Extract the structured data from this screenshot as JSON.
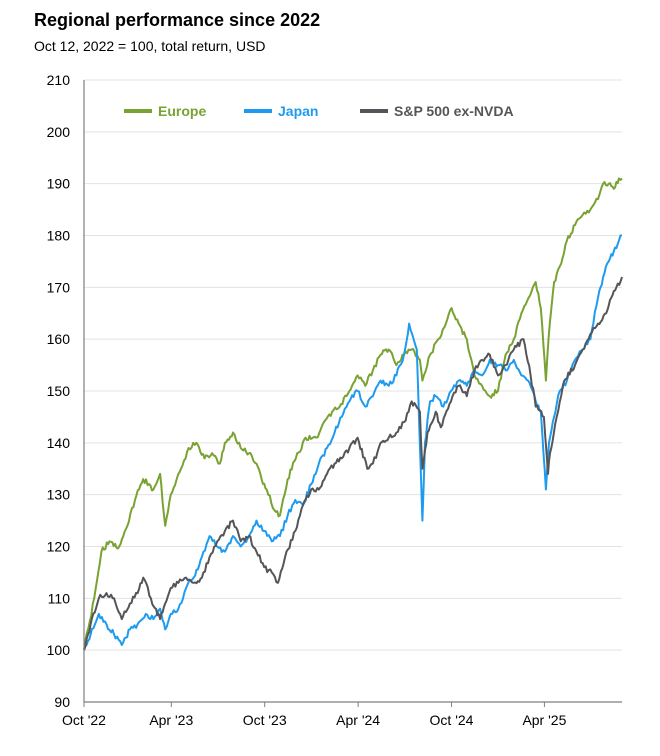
{
  "chart_data": {
    "type": "line",
    "title": "Regional performance since 2022",
    "subtitle": "Oct 12, 2022 = 100, total return, USD",
    "xlabel": "",
    "ylabel": "",
    "xlim": [
      "2022-10-12",
      "2025-08-31"
    ],
    "ylim": [
      90,
      210
    ],
    "y_ticks": [
      90,
      100,
      110,
      120,
      130,
      140,
      150,
      160,
      170,
      180,
      190,
      200,
      210
    ],
    "x_ticks": [
      {
        "date": "2022-10-12",
        "label": "Oct '22"
      },
      {
        "date": "2023-04-01",
        "label": "Apr '23"
      },
      {
        "date": "2023-10-01",
        "label": "Oct '23"
      },
      {
        "date": "2024-04-01",
        "label": "Apr '24"
      },
      {
        "date": "2024-10-01",
        "label": "Oct '24"
      },
      {
        "date": "2025-04-01",
        "label": "Apr '25"
      }
    ],
    "grid": {
      "horizontal": true,
      "vertical": false
    },
    "legend_position": "top-left",
    "series": [
      {
        "name": "Europe",
        "color": "#7aa232",
        "points": [
          [
            "2022-10-12",
            100
          ],
          [
            "2022-11-01",
            110
          ],
          [
            "2022-11-15",
            119
          ],
          [
            "2022-12-01",
            121
          ],
          [
            "2022-12-20",
            120
          ],
          [
            "2023-01-05",
            124
          ],
          [
            "2023-01-20",
            129
          ],
          [
            "2023-02-05",
            133
          ],
          [
            "2023-02-25",
            131
          ],
          [
            "2023-03-10",
            134
          ],
          [
            "2023-03-20",
            124
          ],
          [
            "2023-03-31",
            130
          ],
          [
            "2023-04-20",
            135
          ],
          [
            "2023-05-05",
            139
          ],
          [
            "2023-05-20",
            140
          ],
          [
            "2023-06-05",
            137
          ],
          [
            "2023-06-20",
            138
          ],
          [
            "2023-07-05",
            136
          ],
          [
            "2023-07-15",
            140
          ],
          [
            "2023-07-31",
            142
          ],
          [
            "2023-08-15",
            139
          ],
          [
            "2023-08-31",
            138
          ],
          [
            "2023-09-15",
            136
          ],
          [
            "2023-09-25",
            133
          ],
          [
            "2023-10-05",
            131
          ],
          [
            "2023-10-20",
            127
          ],
          [
            "2023-10-31",
            126
          ],
          [
            "2023-11-15",
            133
          ],
          [
            "2023-12-01",
            137
          ],
          [
            "2023-12-20",
            141
          ],
          [
            "2024-01-10",
            141
          ],
          [
            "2024-01-25",
            144
          ],
          [
            "2024-02-10",
            146
          ],
          [
            "2024-02-25",
            147
          ],
          [
            "2024-03-15",
            150
          ],
          [
            "2024-03-31",
            153
          ],
          [
            "2024-04-15",
            151
          ],
          [
            "2024-04-30",
            154
          ],
          [
            "2024-05-15",
            157
          ],
          [
            "2024-05-31",
            158
          ],
          [
            "2024-06-15",
            155
          ],
          [
            "2024-06-30",
            157
          ],
          [
            "2024-07-15",
            158
          ],
          [
            "2024-07-31",
            156
          ],
          [
            "2024-08-05",
            152
          ],
          [
            "2024-08-20",
            157
          ],
          [
            "2024-09-05",
            160
          ],
          [
            "2024-09-20",
            163
          ],
          [
            "2024-10-01",
            166
          ],
          [
            "2024-10-15",
            163
          ],
          [
            "2024-10-31",
            160
          ],
          [
            "2024-11-15",
            153
          ],
          [
            "2024-11-30",
            151
          ],
          [
            "2024-12-15",
            149
          ],
          [
            "2024-12-31",
            150
          ],
          [
            "2025-01-15",
            157
          ],
          [
            "2025-01-31",
            160
          ],
          [
            "2025-02-15",
            165
          ],
          [
            "2025-03-01",
            168
          ],
          [
            "2025-03-15",
            171
          ],
          [
            "2025-03-25",
            166
          ],
          [
            "2025-04-04",
            152
          ],
          [
            "2025-04-09",
            160
          ],
          [
            "2025-04-20",
            171
          ],
          [
            "2025-05-01",
            174
          ],
          [
            "2025-05-15",
            179
          ],
          [
            "2025-05-31",
            182
          ],
          [
            "2025-06-15",
            184
          ],
          [
            "2025-06-30",
            185
          ],
          [
            "2025-07-15",
            187
          ],
          [
            "2025-07-25",
            190
          ],
          [
            "2025-08-05",
            190
          ],
          [
            "2025-08-15",
            189
          ],
          [
            "2025-08-25",
            191
          ],
          [
            "2025-08-31",
            191
          ]
        ]
      },
      {
        "name": "Japan",
        "color": "#1e9bef",
        "points": [
          [
            "2022-10-12",
            100
          ],
          [
            "2022-10-25",
            103
          ],
          [
            "2022-11-10",
            107
          ],
          [
            "2022-11-25",
            105
          ],
          [
            "2022-12-10",
            103
          ],
          [
            "2022-12-25",
            101
          ],
          [
            "2023-01-10",
            104
          ],
          [
            "2023-01-25",
            105
          ],
          [
            "2023-02-10",
            107
          ],
          [
            "2023-02-25",
            106
          ],
          [
            "2023-03-10",
            108
          ],
          [
            "2023-03-20",
            104
          ],
          [
            "2023-03-31",
            107
          ],
          [
            "2023-04-15",
            108
          ],
          [
            "2023-04-30",
            112
          ],
          [
            "2023-05-15",
            114
          ],
          [
            "2023-05-31",
            118
          ],
          [
            "2023-06-15",
            122
          ],
          [
            "2023-06-30",
            120
          ],
          [
            "2023-07-15",
            119
          ],
          [
            "2023-07-31",
            122
          ],
          [
            "2023-08-15",
            120
          ],
          [
            "2023-08-31",
            122
          ],
          [
            "2023-09-15",
            125
          ],
          [
            "2023-09-30",
            123
          ],
          [
            "2023-10-15",
            121
          ],
          [
            "2023-10-31",
            122
          ],
          [
            "2023-11-15",
            126
          ],
          [
            "2023-11-30",
            129
          ],
          [
            "2023-12-15",
            128
          ],
          [
            "2023-12-31",
            132
          ],
          [
            "2024-01-15",
            136
          ],
          [
            "2024-01-31",
            139
          ],
          [
            "2024-02-15",
            142
          ],
          [
            "2024-02-29",
            145
          ],
          [
            "2024-03-15",
            148
          ],
          [
            "2024-03-31",
            150
          ],
          [
            "2024-04-15",
            147
          ],
          [
            "2024-04-30",
            149
          ],
          [
            "2024-05-15",
            152
          ],
          [
            "2024-05-31",
            151
          ],
          [
            "2024-06-15",
            153
          ],
          [
            "2024-06-30",
            157
          ],
          [
            "2024-07-10",
            163
          ],
          [
            "2024-07-25",
            158
          ],
          [
            "2024-08-05",
            125
          ],
          [
            "2024-08-10",
            140
          ],
          [
            "2024-08-20",
            148
          ],
          [
            "2024-08-31",
            149
          ],
          [
            "2024-09-15",
            147
          ],
          [
            "2024-09-30",
            150
          ],
          [
            "2024-10-15",
            152
          ],
          [
            "2024-10-31",
            151
          ],
          [
            "2024-11-15",
            154
          ],
          [
            "2024-11-30",
            153
          ],
          [
            "2024-12-15",
            156
          ],
          [
            "2024-12-31",
            155
          ],
          [
            "2025-01-15",
            154
          ],
          [
            "2025-01-31",
            156
          ],
          [
            "2025-02-15",
            153
          ],
          [
            "2025-02-28",
            152
          ],
          [
            "2025-03-15",
            148
          ],
          [
            "2025-03-25",
            146
          ],
          [
            "2025-04-04",
            131
          ],
          [
            "2025-04-10",
            140
          ],
          [
            "2025-04-20",
            145
          ],
          [
            "2025-05-01",
            150
          ],
          [
            "2025-05-15",
            152
          ],
          [
            "2025-05-31",
            156
          ],
          [
            "2025-06-15",
            158
          ],
          [
            "2025-06-30",
            160
          ],
          [
            "2025-07-15",
            168
          ],
          [
            "2025-07-25",
            172
          ],
          [
            "2025-08-05",
            175
          ],
          [
            "2025-08-15",
            177
          ],
          [
            "2025-08-25",
            179
          ],
          [
            "2025-08-31",
            180
          ]
        ]
      },
      {
        "name": "S&P 500 ex-NVDA",
        "color": "#555559",
        "points": [
          [
            "2022-10-12",
            100
          ],
          [
            "2022-10-25",
            105
          ],
          [
            "2022-11-10",
            110
          ],
          [
            "2022-11-25",
            111
          ],
          [
            "2022-12-10",
            110
          ],
          [
            "2022-12-25",
            106
          ],
          [
            "2023-01-10",
            109
          ],
          [
            "2023-01-25",
            111
          ],
          [
            "2023-02-05",
            114
          ],
          [
            "2023-02-20",
            110
          ],
          [
            "2023-03-10",
            106
          ],
          [
            "2023-03-20",
            109
          ],
          [
            "2023-03-31",
            112
          ],
          [
            "2023-04-15",
            113
          ],
          [
            "2023-04-30",
            114
          ],
          [
            "2023-05-15",
            113
          ],
          [
            "2023-05-31",
            114
          ],
          [
            "2023-06-15",
            118
          ],
          [
            "2023-06-30",
            121
          ],
          [
            "2023-07-15",
            123
          ],
          [
            "2023-07-31",
            125
          ],
          [
            "2023-08-15",
            121
          ],
          [
            "2023-08-31",
            122
          ],
          [
            "2023-09-15",
            119
          ],
          [
            "2023-09-30",
            116
          ],
          [
            "2023-10-15",
            115
          ],
          [
            "2023-10-27",
            113
          ],
          [
            "2023-11-10",
            118
          ],
          [
            "2023-11-30",
            123
          ],
          [
            "2023-12-15",
            128
          ],
          [
            "2023-12-31",
            131
          ],
          [
            "2024-01-15",
            131
          ],
          [
            "2024-01-31",
            134
          ],
          [
            "2024-02-15",
            136
          ],
          [
            "2024-02-29",
            137
          ],
          [
            "2024-03-15",
            139
          ],
          [
            "2024-03-31",
            141
          ],
          [
            "2024-04-19",
            135
          ],
          [
            "2024-04-30",
            136
          ],
          [
            "2024-05-15",
            140
          ],
          [
            "2024-05-31",
            141
          ],
          [
            "2024-06-15",
            142
          ],
          [
            "2024-06-30",
            144
          ],
          [
            "2024-07-15",
            148
          ],
          [
            "2024-07-31",
            146
          ],
          [
            "2024-08-05",
            135
          ],
          [
            "2024-08-15",
            142
          ],
          [
            "2024-08-31",
            146
          ],
          [
            "2024-09-10",
            143
          ],
          [
            "2024-09-30",
            148
          ],
          [
            "2024-10-15",
            151
          ],
          [
            "2024-10-31",
            149
          ],
          [
            "2024-11-15",
            154
          ],
          [
            "2024-11-30",
            156
          ],
          [
            "2024-12-15",
            157
          ],
          [
            "2024-12-31",
            153
          ],
          [
            "2025-01-15",
            155
          ],
          [
            "2025-01-31",
            158
          ],
          [
            "2025-02-19",
            160
          ],
          [
            "2025-03-05",
            153
          ],
          [
            "2025-03-15",
            147
          ],
          [
            "2025-03-31",
            145
          ],
          [
            "2025-04-08",
            134
          ],
          [
            "2025-04-12",
            138
          ],
          [
            "2025-04-25",
            145
          ],
          [
            "2025-05-10",
            152
          ],
          [
            "2025-05-31",
            155
          ],
          [
            "2025-06-15",
            158
          ],
          [
            "2025-06-30",
            161
          ],
          [
            "2025-07-15",
            163
          ],
          [
            "2025-07-31",
            165
          ],
          [
            "2025-08-10",
            168
          ],
          [
            "2025-08-20",
            170
          ],
          [
            "2025-08-31",
            172
          ]
        ]
      }
    ]
  }
}
